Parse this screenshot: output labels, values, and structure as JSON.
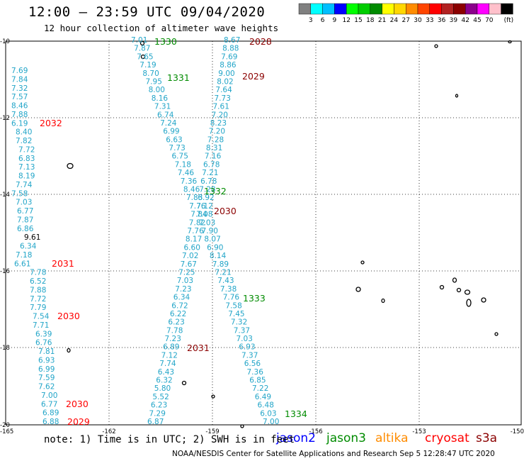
{
  "header": {
    "title": "12:00 – 23:59 UTC 09/04/2020",
    "subtitle": "12 hour collection of altimeter wave heights"
  },
  "colorbar": {
    "unit": "(ft)",
    "colors": [
      "#808080",
      "#00ffff",
      "#00bfff",
      "#0000ff",
      "#00ff00",
      "#00cd00",
      "#008b00",
      "#ffff00",
      "#ffd700",
      "#ff8c00",
      "#ff4500",
      "#ff0000",
      "#b22222",
      "#8b0000",
      "#8b008b",
      "#ff00ff",
      "#ffc0cb",
      "#000000"
    ],
    "labels": [
      "3",
      "6",
      "9",
      "12",
      "15",
      "18",
      "21",
      "24",
      "27",
      "30",
      "33",
      "36",
      "39",
      "42",
      "45",
      "70"
    ]
  },
  "axes": {
    "x_ticks": [
      "-165",
      "-162",
      "-159",
      "-156",
      "-153",
      "-150"
    ],
    "y_ticks": [
      "-10",
      "-12",
      "-14",
      "-16",
      "-18",
      "-20"
    ]
  },
  "tracks": [
    {
      "id": "track-a",
      "x0": 8,
      "slope": 0,
      "values": [
        "7.69",
        "7.84",
        "7.32",
        "7.57",
        "8.46",
        "7.88",
        "6.19",
        "8.40",
        "7.82",
        "7.72",
        "6.83",
        "7.13",
        "8.19",
        "7.74",
        "7.58",
        "7.03",
        "6.77",
        "7.87",
        "6.86",
        "9.61",
        "6.34",
        "7.18",
        "6.61",
        "7.78",
        "6.52",
        "7.88",
        "7.72",
        "7.79",
        "7.54",
        "7.71",
        "6.39",
        "6.76",
        "7.81",
        "6.93",
        "6.99",
        "7.59",
        "7.62",
        "7.00",
        "6.77",
        "6.89",
        "6.88"
      ]
    },
    {
      "id": "track-b",
      "values": [
        "7.01",
        "7.87",
        "7.65",
        "7.19",
        "8.70",
        "7.95",
        "8.00",
        "8.16",
        "7.31",
        "6.74",
        "7.24",
        "6.99",
        "6.63",
        "7.73",
        "6.75",
        "7.18",
        "7.46",
        "7.36",
        "8.46",
        "7.83",
        "7.76",
        "7.84",
        "7.82",
        "7.76",
        "8.17",
        "6.60",
        "7.02",
        "7.67",
        "7.25",
        "7.03",
        "7.23",
        "6.34",
        "6.72",
        "6.22",
        "6.23",
        "7.78",
        "7.23",
        "6.89",
        "7.12",
        "7.74",
        "6.43",
        "6.32",
        "5.80",
        "5.52",
        "6.23",
        "7.29",
        "6.87"
      ]
    },
    {
      "id": "track-c",
      "values": [
        "8.67",
        "8.88",
        "7.69",
        "8.86",
        "9.00",
        "8.02",
        "7.64",
        "7.73",
        "7.61",
        "7.20",
        "8.23",
        "7.20",
        "7.28",
        "8.31",
        "7.16",
        "6.78",
        "7.21",
        "6.78",
        "7.28",
        "6.92",
        "7.12",
        "7.08",
        "7.03",
        "7.90",
        "8.07",
        "6.90",
        "8.14",
        "7.89",
        "7.21",
        "7.43",
        "7.38",
        "7.76",
        "7.58",
        "7.45",
        "7.32",
        "7.37",
        "7.03",
        "6.93",
        "7.37",
        "6.56",
        "7.36",
        "6.85",
        "7.22",
        "6.49",
        "6.48",
        "6.03",
        "7.00"
      ]
    }
  ],
  "highlight_value": "9.61",
  "revolution_labels": [
    {
      "text": "1330",
      "sat": "jason3"
    },
    {
      "text": "1331",
      "sat": "jason3"
    },
    {
      "text": "1332",
      "sat": "jason3"
    },
    {
      "text": "1333",
      "sat": "jason3"
    },
    {
      "text": "1334",
      "sat": "jason3"
    },
    {
      "text": "2028",
      "sat": "s3a"
    },
    {
      "text": "2029",
      "sat": "s3a"
    },
    {
      "text": "2030",
      "sat": "s3a"
    },
    {
      "text": "2031",
      "sat": "s3a"
    },
    {
      "text": "2032",
      "sat": "cryosat"
    },
    {
      "text": "2031",
      "sat": "cryosat"
    },
    {
      "text": "2030",
      "sat": "cryosat"
    },
    {
      "text": "2030",
      "sat": "cryosat"
    },
    {
      "text": "2029",
      "sat": "cryosat"
    }
  ],
  "satellites": {
    "jason2": {
      "label": "jason2",
      "color": "#0000ff"
    },
    "jason3": {
      "label": "jason3",
      "color": "#008b00"
    },
    "altika": {
      "label": "altika",
      "color": "#ff8c00"
    },
    "cryosat": {
      "label": "cryosat",
      "color": "#ff0000"
    },
    "s3a": {
      "label": "s3a",
      "color": "#8b0000"
    }
  },
  "footer": {
    "note": "note: 1) Time is in UTC; 2) SWH is in feet",
    "credit": "NOAA/NESDIS Center for Satellite Applications and Research   Sep  5 12:28:47 UTC 2020"
  }
}
